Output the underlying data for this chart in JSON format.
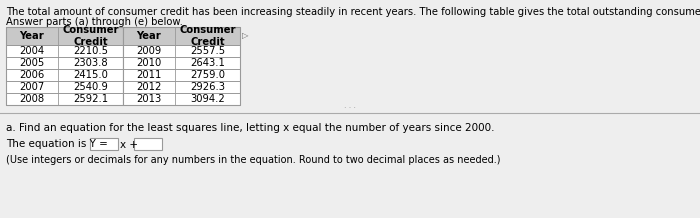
{
  "title_line1": "The total amount of consumer credit has been increasing steadily in recent years. The following table gives the total outstanding consumer credit (in billions of dollars).",
  "title_line2": "Answer parts (a) through (e) below.",
  "table1_headers": [
    "Year",
    "Consumer\nCredit"
  ],
  "table1_rows": [
    [
      "2004",
      "2210.5"
    ],
    [
      "2005",
      "2303.8"
    ],
    [
      "2006",
      "2415.0"
    ],
    [
      "2007",
      "2540.9"
    ],
    [
      "2008",
      "2592.1"
    ]
  ],
  "table2_headers": [
    "Year",
    "Consumer\nCredit"
  ],
  "table2_rows": [
    [
      "2009",
      "2557.5"
    ],
    [
      "2010",
      "2643.1"
    ],
    [
      "2011",
      "2759.0"
    ],
    [
      "2012",
      "2926.3"
    ],
    [
      "2013",
      "3094.2"
    ]
  ],
  "part_a_text": "a. Find an equation for the least squares line, letting x equal the number of years since 2000.",
  "equation_label": "The equation is Y =",
  "note_text": "(Use integers or decimals for any numbers in the equation. Round to two decimal places as needed.)",
  "bg_color": "#eeeeee",
  "table_bg": "#ffffff",
  "header_bg": "#c8c8c8",
  "border_color": "#999999",
  "text_color": "#000000",
  "title_fontsize": 7.2,
  "table_fontsize": 7.2,
  "body_fontsize": 7.5
}
